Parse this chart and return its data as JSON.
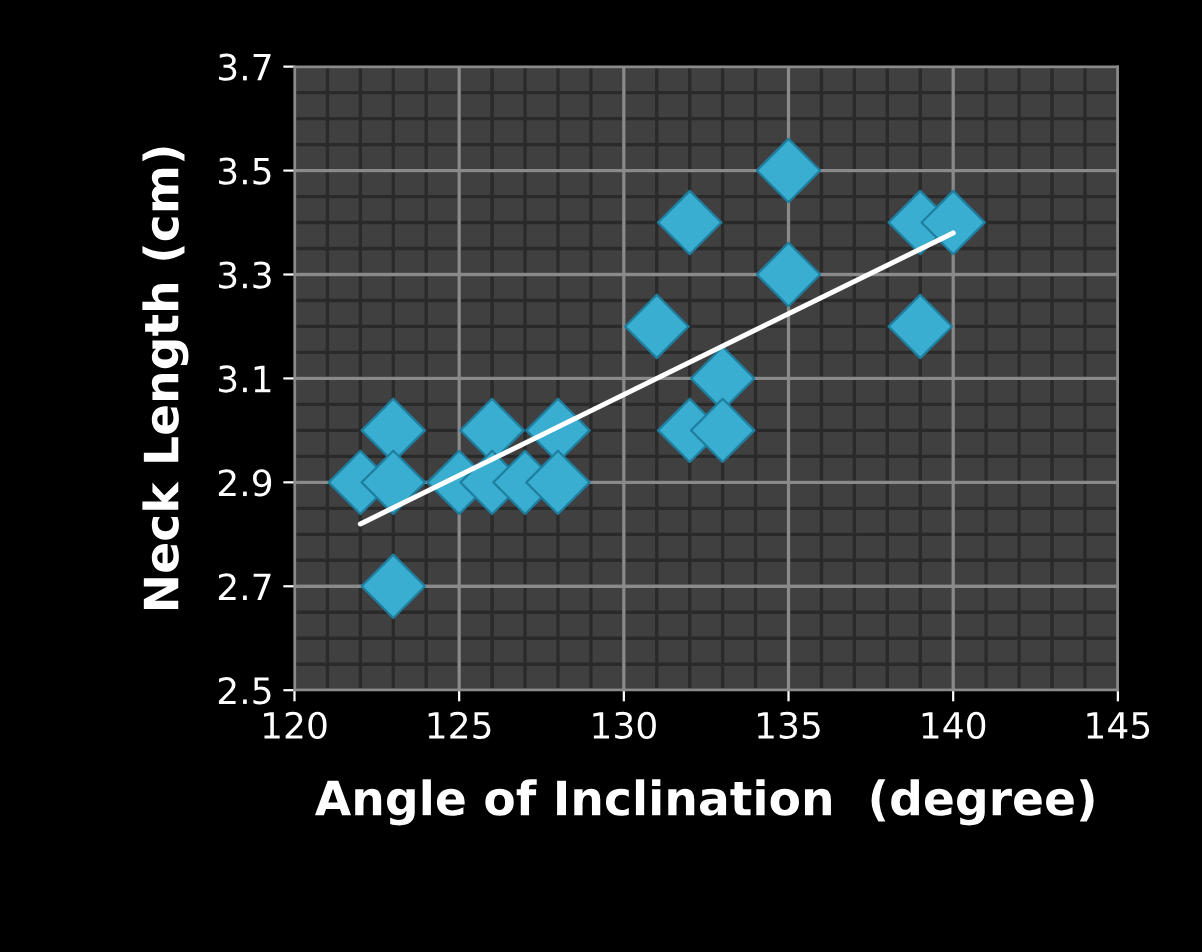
{
  "chart_data": {
    "type": "scatter",
    "xlabel": "Angle of Inclination  (degree)",
    "ylabel": "Neck Length (cm)",
    "xlim": [
      120,
      145
    ],
    "xticks": [
      120,
      125,
      130,
      135,
      140,
      145
    ],
    "ylim": [
      2.5,
      3.7
    ],
    "yticks": [
      2.5,
      2.7,
      2.9,
      3.1,
      3.3,
      3.5,
      3.7
    ],
    "grid": true,
    "marker": "diamond",
    "series": [
      {
        "color": "#3aaed0",
        "x": [
          122,
          123,
          123,
          123,
          125,
          126,
          126,
          127,
          128,
          128,
          131,
          132,
          132,
          133,
          133,
          135,
          135,
          139,
          139,
          140
        ],
        "values": [
          2.9,
          3.0,
          2.9,
          2.7,
          2.9,
          3.0,
          2.9,
          2.9,
          3.0,
          2.9,
          3.2,
          3.4,
          3.0,
          3.1,
          3.0,
          3.5,
          3.3,
          3.4,
          3.2,
          3.4
        ]
      },
      {
        "type": "line",
        "color": "#ffffff",
        "marker": "none",
        "line_style": "solid",
        "x": [
          122,
          140
        ],
        "values": [
          2.82,
          3.38
        ]
      }
    ]
  }
}
